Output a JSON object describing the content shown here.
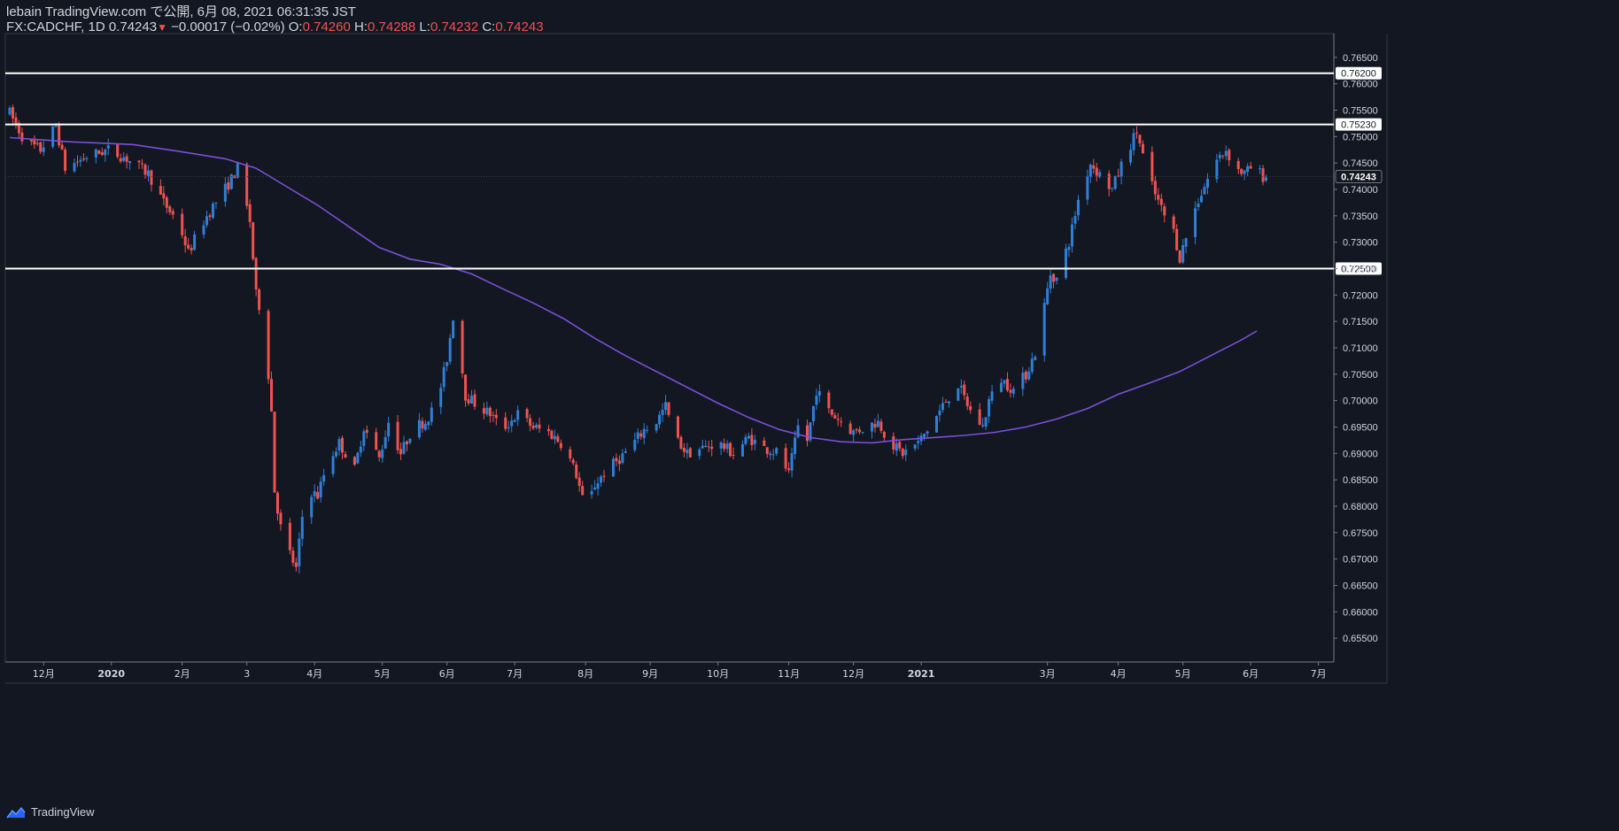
{
  "header": {
    "publish_line": "lebain TradingView.com で公開, 6月 08, 2021 06:31:35 JST",
    "symbol": "FX:CADCHF, 1D",
    "last": "0.74243",
    "change_arrow": "▼",
    "change": "−0.00017 (−0.02%)",
    "o_label": "O:",
    "o_value": "0.74260",
    "h_label": "H:",
    "h_value": "0.74288",
    "l_label": "L:",
    "l_value": "0.74232",
    "c_label": "C:",
    "c_value": "0.74243"
  },
  "footer": {
    "brand": "TradingView",
    "logo_icon": "tradingview-cloud-icon"
  },
  "colors": {
    "background": "#131722",
    "up": "#2f7fd6",
    "down": "#ef5350",
    "ma": "#7b4fd8",
    "level": "#ffffff",
    "text": "#d1d4dc"
  },
  "chart_data": {
    "type": "candlestick",
    "symbol": "FX:CADCHF",
    "interval": "1D",
    "ylim": [
      0.6505,
      0.7695
    ],
    "y_ticks": [
      "0.76500",
      "0.76000",
      "0.75500",
      "0.75000",
      "0.74500",
      "0.74000",
      "0.73500",
      "0.73000",
      "0.72500",
      "0.72000",
      "0.71500",
      "0.71000",
      "0.70500",
      "0.70000",
      "0.69500",
      "0.69000",
      "0.68500",
      "0.68000",
      "0.67500",
      "0.67000",
      "0.66500",
      "0.66000",
      "0.65500"
    ],
    "x_ticks": [
      {
        "label": "12月",
        "day": 11
      },
      {
        "label": "2020",
        "day": 33
      },
      {
        "label": "2月",
        "day": 56
      },
      {
        "label": "3",
        "day": 77
      },
      {
        "label": "4月",
        "day": 99
      },
      {
        "label": "5月",
        "day": 121
      },
      {
        "label": "6月",
        "day": 142
      },
      {
        "label": "7月",
        "day": 164
      },
      {
        "label": "8月",
        "day": 187
      },
      {
        "label": "9月",
        "day": 208
      },
      {
        "label": "10月",
        "day": 230
      },
      {
        "label": "11月",
        "day": 253
      },
      {
        "label": "12月",
        "day": 274
      },
      {
        "label": "2021",
        "day": 296
      },
      {
        "label": "3月",
        "day": 337
      },
      {
        "label": "4月",
        "day": 360
      },
      {
        "label": "5月",
        "day": 381
      },
      {
        "label": "6月",
        "day": 403
      },
      {
        "label": "7月",
        "day": 425
      }
    ],
    "horizontal_levels": [
      {
        "value": 0.762,
        "label": "0.76200"
      },
      {
        "value": 0.7523,
        "label": "0.75230"
      },
      {
        "value": 0.725,
        "label": "0.72500"
      }
    ],
    "last_price": {
      "value": 0.74243,
      "label": "0.74243"
    },
    "ma_series": [
      [
        0,
        0.7498
      ],
      [
        20,
        0.749
      ],
      [
        40,
        0.7485
      ],
      [
        55,
        0.7472
      ],
      [
        70,
        0.7458
      ],
      [
        80,
        0.744
      ],
      [
        90,
        0.7405
      ],
      [
        100,
        0.737
      ],
      [
        110,
        0.733
      ],
      [
        120,
        0.729
      ],
      [
        130,
        0.7268
      ],
      [
        140,
        0.7258
      ],
      [
        150,
        0.724
      ],
      [
        160,
        0.7212
      ],
      [
        170,
        0.7185
      ],
      [
        180,
        0.7155
      ],
      [
        190,
        0.7118
      ],
      [
        200,
        0.7085
      ],
      [
        210,
        0.7055
      ],
      [
        220,
        0.7025
      ],
      [
        230,
        0.6995
      ],
      [
        240,
        0.6968
      ],
      [
        250,
        0.6945
      ],
      [
        260,
        0.693
      ],
      [
        270,
        0.6922
      ],
      [
        280,
        0.692
      ],
      [
        290,
        0.6926
      ],
      [
        300,
        0.693
      ],
      [
        310,
        0.6934
      ],
      [
        320,
        0.694
      ],
      [
        330,
        0.695
      ],
      [
        340,
        0.6965
      ],
      [
        350,
        0.6985
      ],
      [
        360,
        0.7012
      ],
      [
        370,
        0.7033
      ],
      [
        380,
        0.7055
      ],
      [
        390,
        0.7085
      ],
      [
        400,
        0.7115
      ],
      [
        405,
        0.7132
      ]
    ],
    "price_path": [
      [
        0,
        0.7545
      ],
      [
        5,
        0.749
      ],
      [
        10,
        0.7475
      ],
      [
        15,
        0.752
      ],
      [
        18,
        0.744
      ],
      [
        25,
        0.7462
      ],
      [
        32,
        0.7475
      ],
      [
        38,
        0.7458
      ],
      [
        45,
        0.743
      ],
      [
        50,
        0.7375
      ],
      [
        55,
        0.7335
      ],
      [
        58,
        0.728
      ],
      [
        62,
        0.733
      ],
      [
        66,
        0.7368
      ],
      [
        71,
        0.741
      ],
      [
        74,
        0.744
      ],
      [
        78,
        0.734
      ],
      [
        80,
        0.72
      ],
      [
        82,
        0.716
      ],
      [
        84,
        0.705
      ],
      [
        85,
        0.698
      ],
      [
        86,
        0.683
      ],
      [
        88,
        0.676
      ],
      [
        91,
        0.671
      ],
      [
        93,
        0.668
      ],
      [
        95,
        0.678
      ],
      [
        97,
        0.683
      ],
      [
        100,
        0.682
      ],
      [
        103,
        0.688
      ],
      [
        107,
        0.692
      ],
      [
        112,
        0.687
      ],
      [
        115,
        0.695
      ],
      [
        120,
        0.689
      ],
      [
        123,
        0.696
      ],
      [
        127,
        0.69
      ],
      [
        131,
        0.695
      ],
      [
        135,
        0.696
      ],
      [
        139,
        0.7
      ],
      [
        142,
        0.708
      ],
      [
        144,
        0.716
      ],
      [
        146,
        0.71
      ],
      [
        148,
        0.701
      ],
      [
        152,
        0.699
      ],
      [
        156,
        0.6975
      ],
      [
        160,
        0.6945
      ],
      [
        165,
        0.6975
      ],
      [
        170,
        0.695
      ],
      [
        175,
        0.694
      ],
      [
        180,
        0.6915
      ],
      [
        184,
        0.686
      ],
      [
        187,
        0.679
      ],
      [
        190,
        0.684
      ],
      [
        194,
        0.687
      ],
      [
        198,
        0.689
      ],
      [
        202,
        0.6915
      ],
      [
        206,
        0.6945
      ],
      [
        210,
        0.696
      ],
      [
        213,
        0.699
      ],
      [
        216,
        0.693
      ],
      [
        220,
        0.69
      ],
      [
        225,
        0.691
      ],
      [
        230,
        0.692
      ],
      [
        235,
        0.69
      ],
      [
        240,
        0.693
      ],
      [
        245,
        0.691
      ],
      [
        250,
        0.69
      ],
      [
        253,
        0.686
      ],
      [
        256,
        0.695
      ],
      [
        259,
        0.6925
      ],
      [
        262,
        0.702
      ],
      [
        266,
        0.698
      ],
      [
        270,
        0.696
      ],
      [
        274,
        0.694
      ],
      [
        278,
        0.695
      ],
      [
        282,
        0.696
      ],
      [
        286,
        0.692
      ],
      [
        290,
        0.69
      ],
      [
        295,
        0.692
      ],
      [
        300,
        0.696
      ],
      [
        304,
        0.7
      ],
      [
        308,
        0.703
      ],
      [
        312,
        0.698
      ],
      [
        316,
        0.695
      ],
      [
        318,
        0.7
      ],
      [
        322,
        0.704
      ],
      [
        326,
        0.702
      ],
      [
        330,
        0.705
      ],
      [
        333,
        0.709
      ],
      [
        336,
        0.718
      ],
      [
        338,
        0.724
      ],
      [
        340,
        0.723
      ],
      [
        344,
        0.73
      ],
      [
        347,
        0.738
      ],
      [
        351,
        0.745
      ],
      [
        355,
        0.742
      ],
      [
        358,
        0.74
      ],
      [
        362,
        0.746
      ],
      [
        366,
        0.751
      ],
      [
        369,
        0.744
      ],
      [
        372,
        0.739
      ],
      [
        375,
        0.735
      ],
      [
        378,
        0.732
      ],
      [
        380,
        0.727
      ],
      [
        383,
        0.733
      ],
      [
        386,
        0.738
      ],
      [
        389,
        0.742
      ],
      [
        392,
        0.7455
      ],
      [
        395,
        0.7475
      ],
      [
        398,
        0.744
      ],
      [
        401,
        0.743
      ],
      [
        404,
        0.7445
      ],
      [
        407,
        0.7424
      ]
    ],
    "last_day": 408
  }
}
